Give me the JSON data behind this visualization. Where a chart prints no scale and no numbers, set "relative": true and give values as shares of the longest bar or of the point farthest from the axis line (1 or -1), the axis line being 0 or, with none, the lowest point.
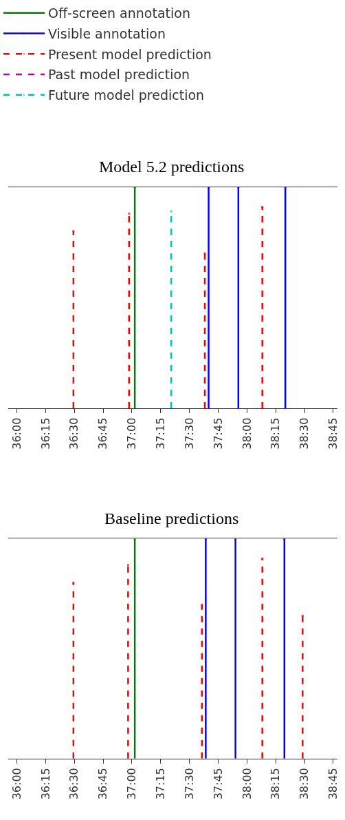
{
  "chart_data": [
    {
      "type": "lollipop",
      "title": "Model 5.2 predictions",
      "relative": true,
      "legend": "top left",
      "xlim": [
        2155.5,
        2327
      ],
      "xticks": [
        {
          "value": 2160,
          "label": "36:00"
        },
        {
          "value": 2175,
          "label": "36:15"
        },
        {
          "value": 2190,
          "label": "36:30"
        },
        {
          "value": 2205,
          "label": "36:45"
        },
        {
          "value": 2220,
          "label": "37:00"
        },
        {
          "value": 2235,
          "label": "37:15"
        },
        {
          "value": 2250,
          "label": "37:30"
        },
        {
          "value": 2265,
          "label": "37:45"
        },
        {
          "value": 2280,
          "label": "38:00"
        },
        {
          "value": 2295,
          "label": "38:15"
        },
        {
          "value": 2310,
          "label": "38:30"
        },
        {
          "value": 2325,
          "label": "38:45"
        }
      ],
      "series": [
        {
          "name": "Off-screen annotation",
          "color": "#008000",
          "line_style": "solid",
          "x": [
            2221.5
          ],
          "values": [
            1
          ]
        },
        {
          "name": "Visible annotation",
          "color": "#0000ff",
          "line_style": "solid",
          "x": [
            2260,
            2275.5,
            2300
          ],
          "values": [
            1,
            1,
            1
          ]
        },
        {
          "name": "Present model prediction",
          "color": "#ff0000",
          "line_style": "dashed",
          "x": [
            2189.5,
            2218.5,
            2258,
            2288
          ],
          "values": [
            0.8,
            0.88,
            0.7,
            0.91
          ]
        },
        {
          "name": "Past model prediction",
          "color": "#bf00bf",
          "line_style": "dashed"
        },
        {
          "name": "Future model prediction",
          "color": "#00bfbf",
          "line_style": "dashed",
          "x": [
            2240.5
          ],
          "values": [
            0.89
          ]
        }
      ]
    },
    {
      "type": "lollipop",
      "title": "Baseline predictions",
      "relative": true,
      "xlim": [
        2155.5,
        2327
      ],
      "xticks": [
        {
          "value": 2160,
          "label": "36:00"
        },
        {
          "value": 2175,
          "label": "36:15"
        },
        {
          "value": 2190,
          "label": "36:30"
        },
        {
          "value": 2205,
          "label": "36:45"
        },
        {
          "value": 2220,
          "label": "37:00"
        },
        {
          "value": 2235,
          "label": "37:15"
        },
        {
          "value": 2250,
          "label": "37:30"
        },
        {
          "value": 2265,
          "label": "37:45"
        },
        {
          "value": 2280,
          "label": "38:00"
        },
        {
          "value": 2295,
          "label": "38:15"
        },
        {
          "value": 2310,
          "label": "38:30"
        },
        {
          "value": 2325,
          "label": "38:45"
        }
      ],
      "series": [
        {
          "color": "#008000",
          "line_style": "solid",
          "x": [
            2221.5
          ],
          "values": [
            1
          ]
        },
        {
          "color": "#0000ff",
          "line_style": "solid",
          "x": [
            2258.5,
            2274,
            2299.5
          ],
          "values": [
            1,
            1,
            1
          ]
        },
        {
          "color": "#ff0000",
          "line_style": "dashed",
          "x": [
            2189.5,
            2218,
            2256.5,
            2288,
            2309
          ],
          "values": [
            0.8,
            0.88,
            0.7,
            0.91,
            0.65
          ]
        }
      ]
    }
  ]
}
